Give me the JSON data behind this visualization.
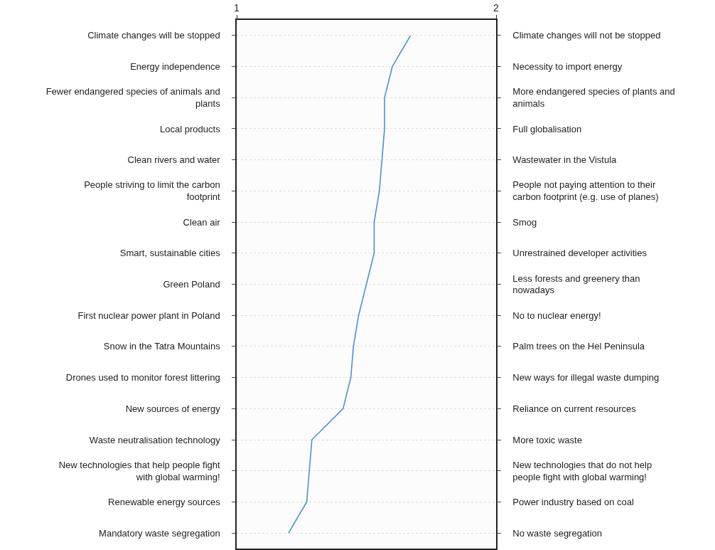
{
  "chart_data": {
    "type": "line",
    "orientation": "horizontal",
    "categories": [
      "Climate changes will be stopped",
      "Energy independence",
      "Fewer endangered species of animals and plants",
      "Local products",
      "Clean rivers and water",
      "People striving to limit the carbon footprint",
      "Clean air",
      "Smart, sustainable cities",
      "Green Poland",
      "First nuclear power plant in Poland",
      "Snow in the Tatra Mountains",
      "Drones used to monitor forest littering",
      "New sources of energy",
      "Waste neutralisation technology",
      "New technologies that help people fight with global warming!",
      "Renewable energy sources",
      "Mandatory waste segregation"
    ],
    "y2_categories": [
      "Climate changes will not be stopped",
      "Necessity to import energy",
      "More endangered species of plants and animals",
      "Full globalisation",
      "Wastewater in the Vistula",
      "People not paying attention to their carbon footprint (e.g. use of planes)",
      "Smog",
      "Unrestrained developer activities",
      "Less forests and greenery than nowadays",
      "No to nuclear energy!",
      "Palm trees on the Hel Peninsula",
      "New ways for illegal waste dumping",
      "Reliance on current resources",
      "More toxic waste",
      "New technologies that do not help people fight with global warming!",
      "Power industry based on coal",
      "No waste segregation"
    ],
    "series": [
      {
        "color": "#4a90d9",
        "values": [
          1.67,
          1.6,
          1.57,
          1.57,
          1.56,
          1.55,
          1.53,
          1.53,
          1.5,
          1.47,
          1.45,
          1.44,
          1.41,
          1.29,
          1.28,
          1.27,
          1.2
        ]
      }
    ],
    "xlim": [
      1,
      2
    ],
    "xticks": [
      1,
      2
    ],
    "grid": "y",
    "marker": "none",
    "line_style": "solid"
  }
}
